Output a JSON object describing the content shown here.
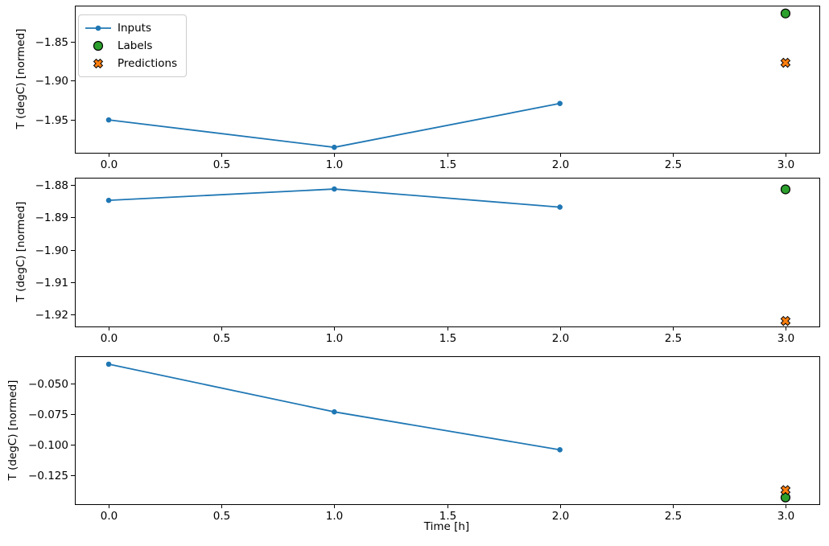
{
  "figure": {
    "background": "#ffffff",
    "axis_color": "#000000",
    "text_color": "#000000",
    "xlabel": "Time [h]",
    "legend": {
      "position": "upper left",
      "items": [
        {
          "label": "Inputs",
          "marker": "line-with-dot",
          "color": "#1f77b4"
        },
        {
          "label": "Labels",
          "marker": "circle",
          "color": "#2ca02c",
          "edge_color": "#000000"
        },
        {
          "label": "Predictions",
          "marker": "X",
          "color": "#ff7f0e",
          "edge_color": "#000000"
        }
      ]
    }
  },
  "chart_data": [
    {
      "type": "line",
      "ylabel": "T (degC) [normed]",
      "xlabel": "",
      "grid": false,
      "xlim": [
        -0.15,
        3.15
      ],
      "ylim": [
        -1.992,
        -1.804
      ],
      "xticks": [
        0.0,
        0.5,
        1.0,
        1.5,
        2.0,
        2.5,
        3.0
      ],
      "xtick_labels": [
        "0.0",
        "0.5",
        "1.0",
        "1.5",
        "2.0",
        "2.5",
        "3.0"
      ],
      "yticks": [
        -1.85,
        -1.9,
        -1.95
      ],
      "ytick_labels": [
        "−1.85",
        "−1.90",
        "−1.95"
      ],
      "series": [
        {
          "name": "Inputs",
          "type": "line",
          "marker": "dot",
          "color": "#1f77b4",
          "x": [
            0.0,
            1.0,
            2.0
          ],
          "y": [
            -1.95,
            -1.985,
            -1.929
          ]
        },
        {
          "name": "Labels",
          "type": "scatter",
          "marker": "circle",
          "color": "#2ca02c",
          "edge_color": "#000000",
          "x": [
            3.0
          ],
          "y": [
            -1.814
          ]
        },
        {
          "name": "Predictions",
          "type": "scatter",
          "marker": "X",
          "color": "#ff7f0e",
          "edge_color": "#000000",
          "x": [
            3.0
          ],
          "y": [
            -1.877
          ]
        }
      ]
    },
    {
      "type": "line",
      "ylabel": "T (degC) [normed]",
      "xlabel": "",
      "grid": false,
      "xlim": [
        -0.15,
        3.15
      ],
      "ylim": [
        -1.9237,
        -1.8777
      ],
      "xticks": [
        0.0,
        0.5,
        1.0,
        1.5,
        2.0,
        2.5,
        3.0
      ],
      "xtick_labels": [
        "0.0",
        "0.5",
        "1.0",
        "1.5",
        "2.0",
        "2.5",
        "3.0"
      ],
      "yticks": [
        -1.88,
        -1.89,
        -1.9,
        -1.91,
        -1.92
      ],
      "ytick_labels": [
        "−1.88",
        "−1.89",
        "−1.90",
        "−1.91",
        "−1.92"
      ],
      "series": [
        {
          "name": "Inputs",
          "type": "line",
          "marker": "dot",
          "color": "#1f77b4",
          "x": [
            0.0,
            1.0,
            2.0
          ],
          "y": [
            -1.8847,
            -1.8812,
            -1.8868
          ]
        },
        {
          "name": "Labels",
          "type": "scatter",
          "marker": "circle",
          "color": "#2ca02c",
          "edge_color": "#000000",
          "x": [
            3.0
          ],
          "y": [
            -1.8813
          ]
        },
        {
          "name": "Predictions",
          "type": "scatter",
          "marker": "X",
          "color": "#ff7f0e",
          "edge_color": "#000000",
          "x": [
            3.0
          ],
          "y": [
            -1.922
          ]
        }
      ]
    },
    {
      "type": "line",
      "ylabel": "T (degC) [normed]",
      "xlabel": "Time [h]",
      "grid": false,
      "xlim": [
        -0.15,
        3.15
      ],
      "ylim": [
        -0.1485,
        -0.0275
      ],
      "xticks": [
        0.0,
        0.5,
        1.0,
        1.5,
        2.0,
        2.5,
        3.0
      ],
      "xtick_labels": [
        "0.0",
        "0.5",
        "1.0",
        "1.5",
        "2.0",
        "2.5",
        "3.0"
      ],
      "yticks": [
        -0.05,
        -0.075,
        -0.1,
        -0.125
      ],
      "ytick_labels": [
        "−0.050",
        "−0.075",
        "−0.100",
        "−0.125"
      ],
      "series": [
        {
          "name": "Inputs",
          "type": "line",
          "marker": "dot",
          "color": "#1f77b4",
          "x": [
            0.0,
            1.0,
            2.0
          ],
          "y": [
            -0.034,
            -0.073,
            -0.104
          ]
        },
        {
          "name": "Labels",
          "type": "scatter",
          "marker": "circle",
          "color": "#2ca02c",
          "edge_color": "#000000",
          "x": [
            3.0
          ],
          "y": [
            -0.143
          ]
        },
        {
          "name": "Predictions",
          "type": "scatter",
          "marker": "X",
          "color": "#ff7f0e",
          "edge_color": "#000000",
          "x": [
            3.0
          ],
          "y": [
            -0.137
          ]
        }
      ]
    }
  ]
}
